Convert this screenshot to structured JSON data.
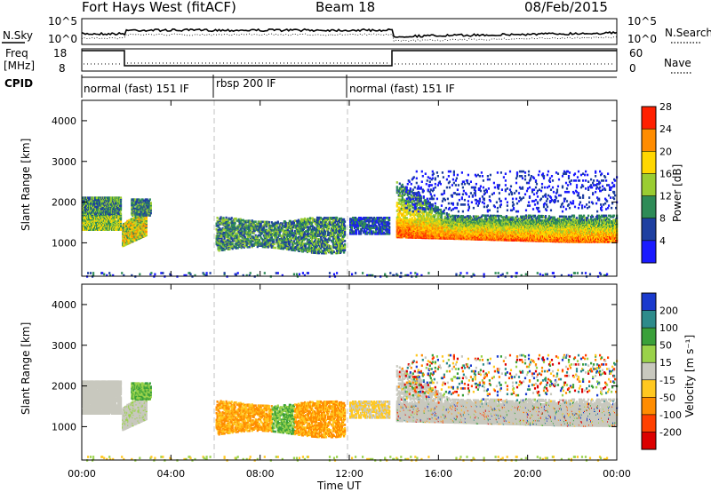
{
  "header": {
    "title": "Fort Hays West (fitACF)",
    "beam": "Beam 18",
    "date": "08/Feb/2015"
  },
  "panels": {
    "nsky": {
      "label": "N.Sky",
      "left_ticks": [
        "10^5",
        "10^0"
      ],
      "right_ticks": [
        "10^5",
        "10^0"
      ],
      "right_label": "N.Search"
    },
    "freq": {
      "label_line1": "Freq",
      "label_line2": "[MHz]",
      "left_ticks": [
        "18",
        "8"
      ],
      "right_ticks": [
        "60",
        "0"
      ],
      "right_label": "Nave"
    },
    "cpid": {
      "label": "CPID",
      "modes": [
        "normal (fast) 151 IF",
        "rbsp 200 IF",
        "normal (fast) 151 IF"
      ]
    }
  },
  "chart_data": [
    {
      "type": "heatmap",
      "title": "",
      "parameter": "Power",
      "ylabel": "Slant Range [km]",
      "xlabel": "",
      "xlim": [
        "00:00",
        "00:00"
      ],
      "ylim": [
        180,
        4500
      ],
      "y_ticks": [
        "1000",
        "2000",
        "3000",
        "4000"
      ],
      "colorbar": {
        "label": "Power [dB]",
        "ticks": [
          "4",
          "8",
          "12",
          "16",
          "20",
          "24",
          "28"
        ],
        "colors": [
          "#1a1aff",
          "#1e3fa0",
          "#2e8b57",
          "#9acd32",
          "#ffd700",
          "#ff8c00",
          "#ff2000"
        ]
      },
      "echo_bands": [
        {
          "start": "00:00",
          "end": "01:45",
          "range_low": 1300,
          "range_high": 2200,
          "level": "moderate-high"
        },
        {
          "start": "01:50",
          "end": "03:00",
          "range_low": 900,
          "range_high": 2100,
          "level": "moderate-high"
        },
        {
          "start": "06:00",
          "end": "11:45",
          "range_low": 800,
          "range_high": 1700,
          "level": "low-moderate"
        },
        {
          "start": "12:00",
          "end": "13:50",
          "range_low": 1200,
          "range_high": 1700,
          "level": "low"
        },
        {
          "start": "14:10",
          "end": "24:00",
          "range_low": 1000,
          "range_high": 2600,
          "level": "high"
        }
      ]
    },
    {
      "type": "heatmap",
      "title": "",
      "parameter": "Velocity",
      "ylabel": "Slant Range [km]",
      "xlabel": "Time UT",
      "xlim": [
        "00:00",
        "00:00"
      ],
      "ylim": [
        180,
        4500
      ],
      "y_ticks": [
        "1000",
        "2000",
        "3000",
        "4000"
      ],
      "x_ticks": [
        "00:00",
        "04:00",
        "08:00",
        "12:00",
        "16:00",
        "20:00",
        "00:00"
      ],
      "colorbar": {
        "label": "Velocity [m s⁻¹]",
        "ticks": [
          "200",
          "100",
          "50",
          "15",
          "-15",
          "-50",
          "-100",
          "-200"
        ],
        "colors": [
          "#1a3acd",
          "#2e8b8b",
          "#3aa03a",
          "#9ad24a",
          "#c8c8be",
          "#ffc820",
          "#ff8c00",
          "#ff4000",
          "#dc0000"
        ]
      }
    }
  ]
}
